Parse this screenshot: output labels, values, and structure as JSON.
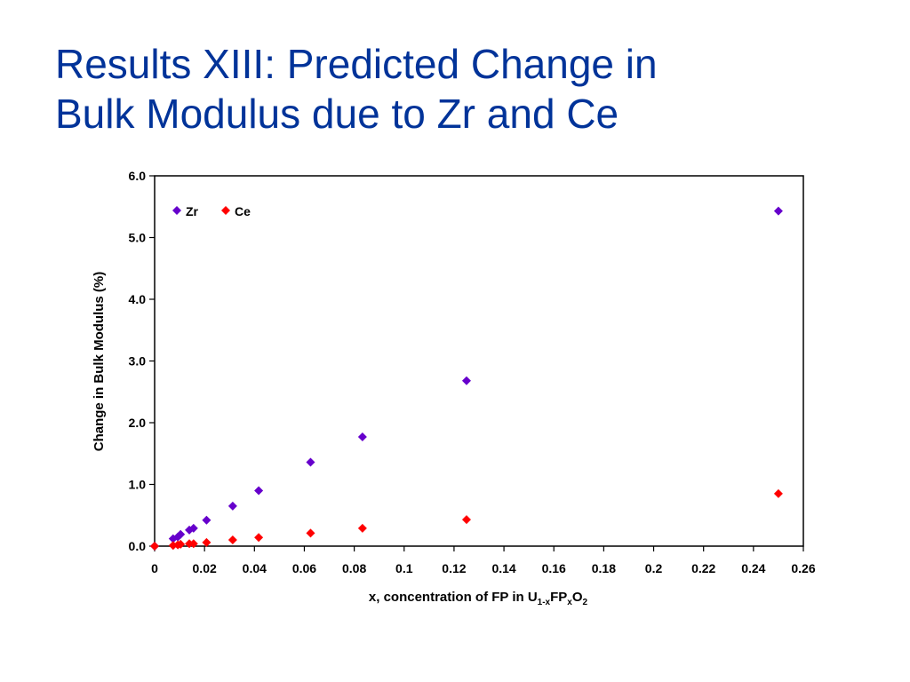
{
  "slide": {
    "title_line1": "Results XIII: Predicted Change in",
    "title_line2": "Bulk Modulus due to Zr and Ce"
  },
  "chart_data": {
    "type": "scatter",
    "xlabel": {
      "prefix": "x, concentration of FP in U",
      "sub1": "1-x",
      "mid": "FP",
      "sub2": "x",
      "mid2": "O",
      "sub3": "2"
    },
    "ylabel": "Change in Bulk Modulus (%)",
    "xlim": [
      0,
      0.26
    ],
    "ylim": [
      0,
      6.0
    ],
    "xticks": [
      "0",
      "0.02",
      "0.04",
      "0.06",
      "0.08",
      "0.1",
      "0.12",
      "0.14",
      "0.16",
      "0.18",
      "0.2",
      "0.22",
      "0.24",
      "0.26"
    ],
    "yticks": [
      "0.0",
      "1.0",
      "2.0",
      "3.0",
      "4.0",
      "5.0",
      "6.0"
    ],
    "grid": false,
    "legend_placement": "top-left",
    "series": [
      {
        "name": "Zr",
        "color": "#6600CC",
        "marker": "diamond",
        "x": [
          0,
          0.0074,
          0.0093,
          0.0104,
          0.0139,
          0.0156,
          0.0208,
          0.0313,
          0.0417,
          0.0625,
          0.0833,
          0.125,
          0.25
        ],
        "y": [
          0.0,
          0.12,
          0.15,
          0.19,
          0.26,
          0.29,
          0.42,
          0.65,
          0.9,
          1.36,
          1.77,
          2.68,
          5.43
        ]
      },
      {
        "name": "Ce",
        "color": "#FF0000",
        "marker": "diamond",
        "x": [
          0,
          0.0074,
          0.0093,
          0.0104,
          0.0139,
          0.0156,
          0.0208,
          0.0313,
          0.0417,
          0.0625,
          0.0833,
          0.125,
          0.25
        ],
        "y": [
          0.0,
          0.01,
          0.02,
          0.03,
          0.04,
          0.04,
          0.06,
          0.1,
          0.14,
          0.21,
          0.29,
          0.43,
          0.85
        ]
      }
    ]
  }
}
